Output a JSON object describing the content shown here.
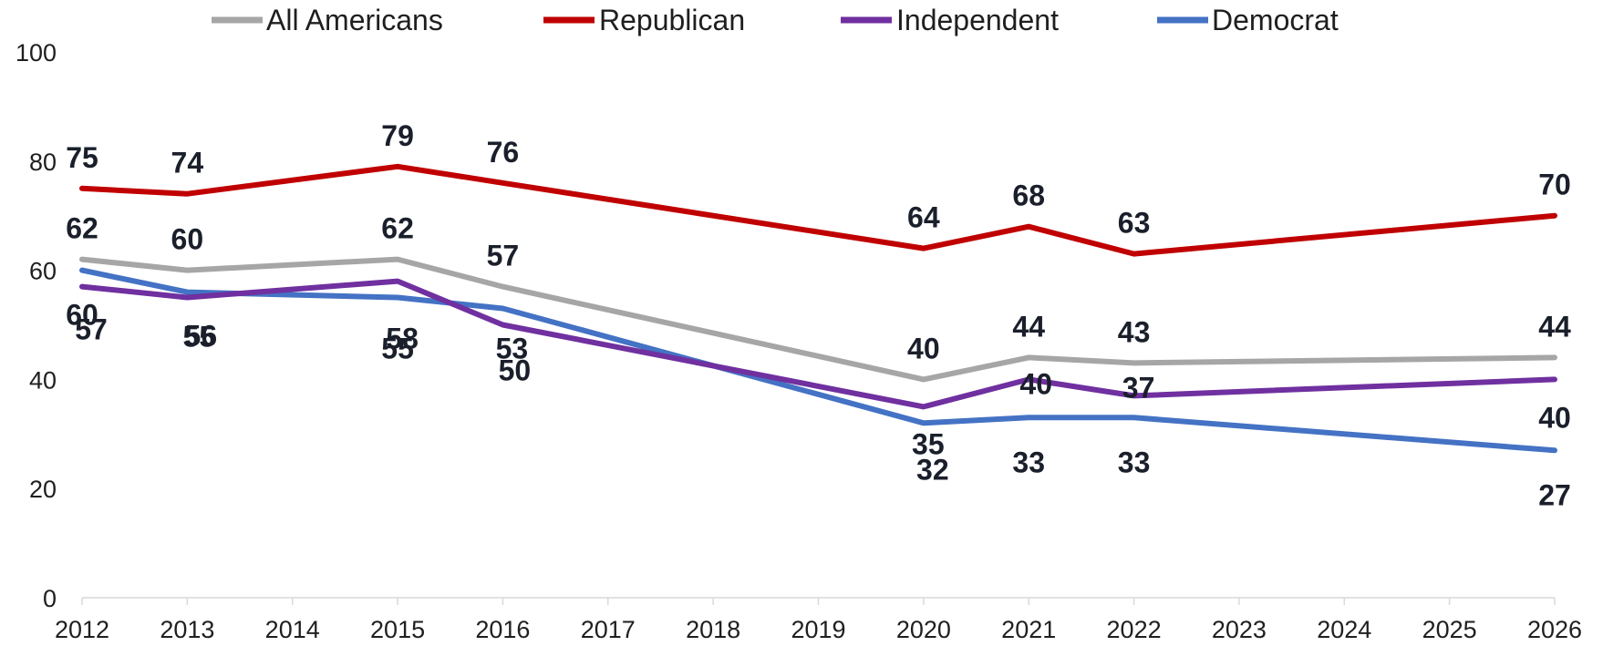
{
  "chart_data": {
    "type": "line",
    "title": "",
    "xlabel": "",
    "ylabel": "",
    "x": [
      2012,
      2013,
      2014,
      2015,
      2016,
      2017,
      2018,
      2019,
      2020,
      2021,
      2022,
      2023,
      2024,
      2025,
      2026
    ],
    "ylim": [
      0,
      100
    ],
    "yticks": [
      0,
      20,
      40,
      60,
      80,
      100
    ],
    "grid": false,
    "legend_position": "top",
    "series": [
      {
        "name": "All Americans",
        "color": "#a6a6a6",
        "points": [
          {
            "x": 2012,
            "y": 62
          },
          {
            "x": 2013,
            "y": 60
          },
          {
            "x": 2015,
            "y": 62
          },
          {
            "x": 2016,
            "y": 57
          },
          {
            "x": 2020,
            "y": 40
          },
          {
            "x": 2021,
            "y": 44
          },
          {
            "x": 2022,
            "y": 43
          },
          {
            "x": 2026,
            "y": 44
          }
        ]
      },
      {
        "name": "Republican",
        "color": "#c00000",
        "points": [
          {
            "x": 2012,
            "y": 75
          },
          {
            "x": 2013,
            "y": 74
          },
          {
            "x": 2015,
            "y": 79
          },
          {
            "x": 2016,
            "y": 76
          },
          {
            "x": 2020,
            "y": 64
          },
          {
            "x": 2021,
            "y": 68
          },
          {
            "x": 2022,
            "y": 63
          },
          {
            "x": 2026,
            "y": 70
          }
        ]
      },
      {
        "name": "Independent",
        "color": "#7030a0",
        "points": [
          {
            "x": 2012,
            "y": 57
          },
          {
            "x": 2013,
            "y": 55
          },
          {
            "x": 2015,
            "y": 58
          },
          {
            "x": 2016,
            "y": 50
          },
          {
            "x": 2020,
            "y": 35
          },
          {
            "x": 2021,
            "y": 40
          },
          {
            "x": 2022,
            "y": 37
          },
          {
            "x": 2026,
            "y": 40
          }
        ]
      },
      {
        "name": "Democrat",
        "color": "#4472c4",
        "points": [
          {
            "x": 2012,
            "y": 60
          },
          {
            "x": 2013,
            "y": 56
          },
          {
            "x": 2015,
            "y": 55
          },
          {
            "x": 2016,
            "y": 53
          },
          {
            "x": 2020,
            "y": 32
          },
          {
            "x": 2021,
            "y": 33
          },
          {
            "x": 2022,
            "y": 33
          },
          {
            "x": 2026,
            "y": 27
          }
        ]
      }
    ]
  }
}
